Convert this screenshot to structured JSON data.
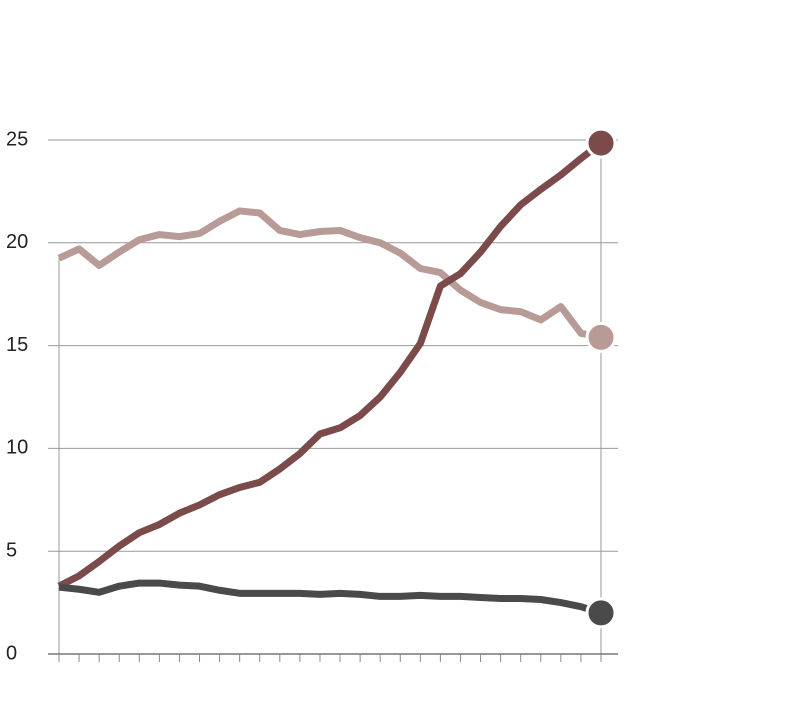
{
  "chart_data": {
    "type": "line",
    "categories": [
      null,
      null,
      null,
      null,
      null,
      null,
      null,
      null,
      null,
      null,
      null,
      null,
      null,
      null,
      null,
      null,
      null,
      null,
      null,
      null,
      null,
      null,
      null,
      null,
      null,
      null,
      null,
      null
    ],
    "series": [
      {
        "color": "#b89a96",
        "values": [
          19.25,
          19.7,
          18.9,
          19.55,
          20.15,
          20.4,
          20.3,
          20.45,
          21.05,
          21.55,
          21.45,
          20.6,
          20.4,
          20.55,
          20.6,
          20.25,
          20.0,
          19.5,
          18.75,
          18.55,
          17.7,
          17.1,
          16.75,
          16.65,
          16.25,
          16.9,
          15.6,
          15.4
        ]
      },
      {
        "color": "#7b4a4a",
        "values": [
          3.3,
          3.8,
          4.5,
          5.25,
          5.9,
          6.3,
          6.85,
          7.25,
          7.75,
          8.1,
          8.35,
          9.0,
          9.75,
          10.7,
          11.0,
          11.6,
          12.5,
          13.7,
          15.1,
          17.9,
          18.5,
          19.55,
          20.8,
          21.85,
          22.6,
          23.3,
          24.1,
          24.85
        ]
      },
      {
        "color": "#4a4a4a",
        "values": [
          3.25,
          3.15,
          3.0,
          3.3,
          3.45,
          3.45,
          3.35,
          3.3,
          3.1,
          2.95,
          2.95,
          2.95,
          2.95,
          2.9,
          2.95,
          2.9,
          2.8,
          2.8,
          2.85,
          2.8,
          2.8,
          2.75,
          2.7,
          2.7,
          2.65,
          2.5,
          2.3,
          2.0
        ]
      }
    ],
    "ylim": [
      0,
      25
    ],
    "yticks": [
      0,
      5,
      10,
      15,
      20,
      25
    ],
    "grid": true
  }
}
